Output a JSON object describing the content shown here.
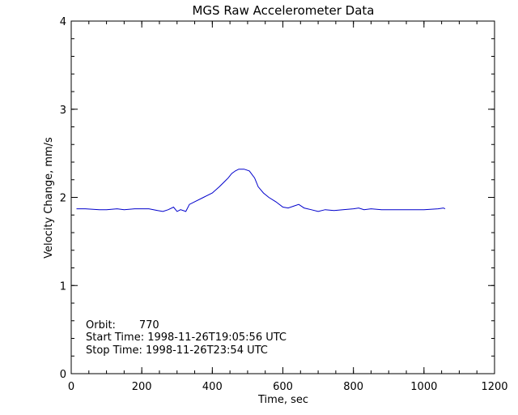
{
  "chart_data": {
    "type": "line",
    "title": "MGS Raw Accelerometer Data",
    "xlabel": "Time, sec",
    "ylabel": "Velocity Change, mm/s",
    "xlim": [
      0,
      1200
    ],
    "ylim": [
      0,
      4
    ],
    "x_ticks": [
      "0",
      "200",
      "400",
      "600",
      "800",
      "1000",
      "1200"
    ],
    "y_ticks": [
      "0",
      "1",
      "2",
      "3",
      "4"
    ],
    "grid": false,
    "line_color": "#0000cc",
    "series": [
      {
        "x": [
          15,
          40,
          80,
          100,
          130,
          150,
          180,
          200,
          220,
          245,
          260,
          275,
          290,
          300,
          310,
          325,
          335,
          350,
          375,
          400,
          420,
          435,
          445,
          455,
          465,
          475,
          490,
          505,
          520,
          530,
          545,
          560,
          580,
          600,
          615,
          630,
          645,
          660,
          680,
          700,
          720,
          745,
          770,
          800,
          815,
          830,
          850,
          880,
          920,
          960,
          1000,
          1040,
          1055,
          1060
        ],
        "y": [
          1.87,
          1.87,
          1.86,
          1.86,
          1.87,
          1.86,
          1.87,
          1.87,
          1.87,
          1.85,
          1.84,
          1.86,
          1.89,
          1.84,
          1.86,
          1.84,
          1.92,
          1.95,
          2.0,
          2.05,
          2.12,
          2.18,
          2.22,
          2.27,
          2.3,
          2.32,
          2.32,
          2.3,
          2.22,
          2.12,
          2.05,
          2.0,
          1.95,
          1.89,
          1.88,
          1.9,
          1.92,
          1.88,
          1.86,
          1.84,
          1.86,
          1.85,
          1.86,
          1.87,
          1.88,
          1.86,
          1.87,
          1.86,
          1.86,
          1.86,
          1.86,
          1.87,
          1.88,
          1.87
        ]
      }
    ],
    "annotations": [
      "Orbit:       770",
      "Start Time: 1998-11-26T19:05:56 UTC",
      "Stop Time: 1998-11-26T23:54 UTC"
    ]
  }
}
